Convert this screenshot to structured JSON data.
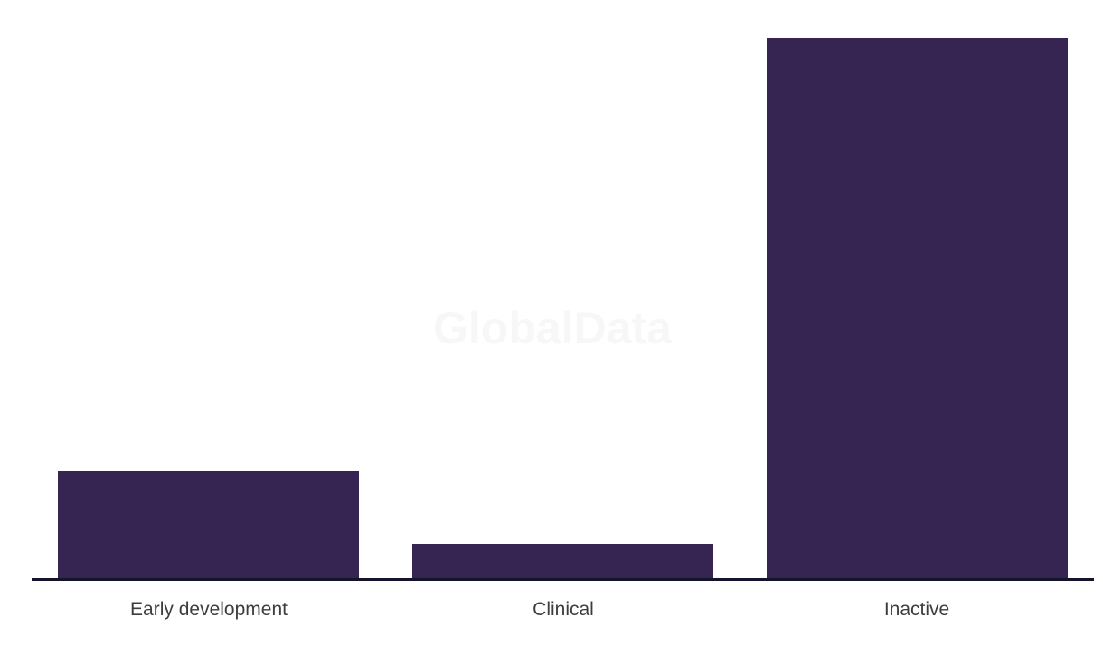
{
  "chart_data": {
    "type": "bar",
    "title": "",
    "xlabel": "",
    "ylabel": "",
    "categories": [
      "Early development",
      "Clinical",
      "Inactive"
    ],
    "values": [
      119,
      38,
      598
    ],
    "ylim": [
      0,
      620
    ],
    "grid": false,
    "legend": false,
    "bar_color": "#362553",
    "axis_line_color": "#14142b",
    "label_color": "#3d3d3d"
  },
  "watermark": {
    "text": "GlobalData",
    "color": "#f7f7f8"
  },
  "colors": {
    "background": "#ffffff",
    "bar": "#362553",
    "axis_line": "#14142b",
    "label_text": "#3d3d3d",
    "watermark": "#f7f7f8"
  }
}
